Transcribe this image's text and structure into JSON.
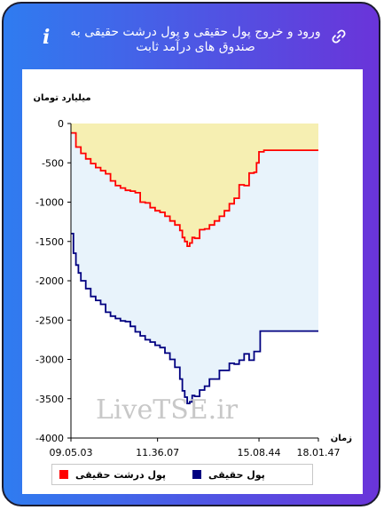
{
  "header": {
    "title": "ورود و خروج پول حقیقی و پول درشت حقیقی به صندوق های درآمد ثابت",
    "info_icon": "info-icon",
    "link_icon": "link-icon",
    "background_gradient": [
      "#2f7cf0",
      "#6a34d9"
    ]
  },
  "watermark": "LiveTSE.ir",
  "chart_data": {
    "type": "area",
    "title": "",
    "ylabel": "میلیارد تومان",
    "xlabel": "زمان",
    "ylim": [
      -4000,
      0
    ],
    "y_ticks": [
      0,
      -500,
      -1000,
      -1500,
      -2000,
      -2500,
      -3000,
      -3500,
      -4000
    ],
    "y_tick_labels": [
      "0",
      "-500",
      "-1000",
      "-1500",
      "-2000",
      "-2500",
      "-3000",
      "-3500",
      "-4000"
    ],
    "x_tick_labels": [
      "09.05.03",
      "11.36.07",
      "15.08.44",
      "18.01.47"
    ],
    "x_tick_positions": [
      0,
      0.35,
      0.76,
      1.0
    ],
    "grid": false,
    "legend_position": "bottom",
    "series": [
      {
        "name": "پول حقیقی",
        "color": "#000080",
        "fill": "#e8f3fb",
        "points": [
          [
            0,
            -1400
          ],
          [
            0.01,
            -1650
          ],
          [
            0.02,
            -1800
          ],
          [
            0.03,
            -1900
          ],
          [
            0.04,
            -2000
          ],
          [
            0.06,
            -2100
          ],
          [
            0.08,
            -2200
          ],
          [
            0.1,
            -2250
          ],
          [
            0.12,
            -2300
          ],
          [
            0.14,
            -2400
          ],
          [
            0.16,
            -2450
          ],
          [
            0.18,
            -2480
          ],
          [
            0.2,
            -2510
          ],
          [
            0.22,
            -2520
          ],
          [
            0.24,
            -2580
          ],
          [
            0.26,
            -2650
          ],
          [
            0.28,
            -2700
          ],
          [
            0.3,
            -2750
          ],
          [
            0.32,
            -2780
          ],
          [
            0.34,
            -2820
          ],
          [
            0.36,
            -2850
          ],
          [
            0.38,
            -2920
          ],
          [
            0.4,
            -3000
          ],
          [
            0.42,
            -3100
          ],
          [
            0.44,
            -3250
          ],
          [
            0.45,
            -3400
          ],
          [
            0.46,
            -3480
          ],
          [
            0.47,
            -3560
          ],
          [
            0.48,
            -3540
          ],
          [
            0.49,
            -3460
          ],
          [
            0.5,
            -3470
          ],
          [
            0.52,
            -3390
          ],
          [
            0.54,
            -3340
          ],
          [
            0.56,
            -3250
          ],
          [
            0.58,
            -3250
          ],
          [
            0.6,
            -3140
          ],
          [
            0.62,
            -3140
          ],
          [
            0.64,
            -3050
          ],
          [
            0.66,
            -3060
          ],
          [
            0.68,
            -3010
          ],
          [
            0.7,
            -2930
          ],
          [
            0.72,
            -3010
          ],
          [
            0.74,
            -2900
          ],
          [
            0.76,
            -2900
          ],
          [
            0.765,
            -2640
          ],
          [
            1.0,
            -2640
          ]
        ]
      },
      {
        "name": "پول درشت حقیقی",
        "color": "#ff0000",
        "fill": "#f6efb2",
        "points": [
          [
            0,
            -120
          ],
          [
            0.02,
            -300
          ],
          [
            0.04,
            -380
          ],
          [
            0.06,
            -450
          ],
          [
            0.08,
            -510
          ],
          [
            0.1,
            -560
          ],
          [
            0.12,
            -600
          ],
          [
            0.14,
            -640
          ],
          [
            0.16,
            -730
          ],
          [
            0.18,
            -790
          ],
          [
            0.2,
            -820
          ],
          [
            0.22,
            -850
          ],
          [
            0.24,
            -860
          ],
          [
            0.26,
            -880
          ],
          [
            0.28,
            -1000
          ],
          [
            0.3,
            -1010
          ],
          [
            0.32,
            -1070
          ],
          [
            0.34,
            -1110
          ],
          [
            0.36,
            -1130
          ],
          [
            0.38,
            -1180
          ],
          [
            0.4,
            -1240
          ],
          [
            0.42,
            -1290
          ],
          [
            0.44,
            -1360
          ],
          [
            0.45,
            -1450
          ],
          [
            0.46,
            -1500
          ],
          [
            0.47,
            -1560
          ],
          [
            0.48,
            -1520
          ],
          [
            0.49,
            -1450
          ],
          [
            0.5,
            -1460
          ],
          [
            0.52,
            -1350
          ],
          [
            0.54,
            -1340
          ],
          [
            0.56,
            -1290
          ],
          [
            0.58,
            -1240
          ],
          [
            0.6,
            -1180
          ],
          [
            0.62,
            -1110
          ],
          [
            0.64,
            -1020
          ],
          [
            0.66,
            -950
          ],
          [
            0.68,
            -780
          ],
          [
            0.7,
            -790
          ],
          [
            0.72,
            -630
          ],
          [
            0.74,
            -620
          ],
          [
            0.75,
            -500
          ],
          [
            0.76,
            -360
          ],
          [
            0.78,
            -340
          ],
          [
            1.0,
            -340
          ]
        ]
      }
    ]
  }
}
